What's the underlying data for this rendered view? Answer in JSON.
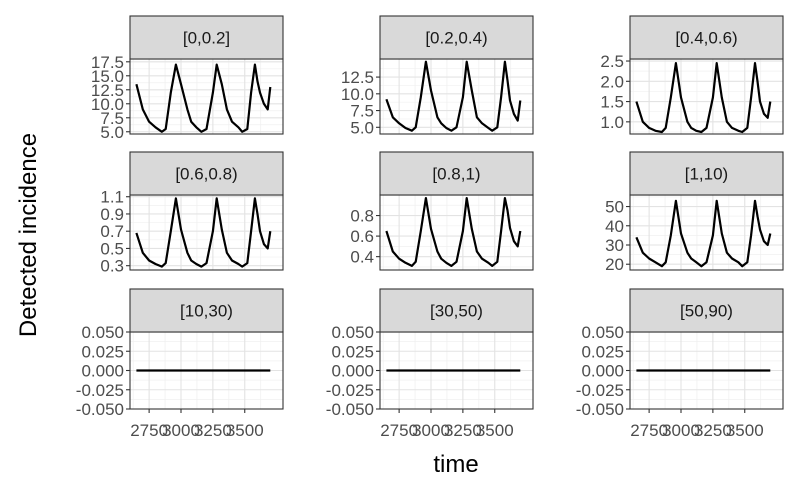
{
  "chart_data": {
    "type": "line",
    "layout": "facet-grid 3x3",
    "xlabel": "time",
    "ylabel": "Detected incidence",
    "x_ticks": [
      2750,
      3000,
      3250,
      3500
    ],
    "xlim": [
      2600,
      3800
    ],
    "facets": [
      {
        "label": "[0,0.2]",
        "ylim": [
          4.6,
          18.0
        ],
        "y_ticks": [
          "5.0",
          "7.5",
          "10.0",
          "12.5",
          "15.0",
          "17.5"
        ],
        "x": [
          2650,
          2700,
          2750,
          2800,
          2850,
          2880,
          2920,
          2960,
          3000,
          3050,
          3080,
          3120,
          3160,
          3200,
          3250,
          3280,
          3320,
          3360,
          3400,
          3450,
          3480,
          3520,
          3550,
          3580,
          3600,
          3620,
          3650,
          3680,
          3700
        ],
        "y": [
          13.5,
          9.0,
          6.8,
          5.8,
          5.0,
          5.5,
          12.0,
          17.0,
          13.5,
          9.0,
          6.8,
          5.8,
          5.0,
          5.5,
          12.0,
          17.0,
          13.5,
          9.0,
          6.8,
          5.8,
          5.0,
          5.5,
          12.0,
          17.0,
          14.0,
          12.0,
          10.0,
          9.0,
          13.0
        ]
      },
      {
        "label": "[0.2,0.4)",
        "ylim": [
          4.0,
          15.2
        ],
        "y_ticks": [
          "5.0",
          "7.5",
          "10.0",
          "12.5"
        ],
        "x": [
          2650,
          2700,
          2750,
          2800,
          2850,
          2880,
          2920,
          2960,
          3000,
          3050,
          3080,
          3120,
          3160,
          3200,
          3250,
          3280,
          3320,
          3360,
          3400,
          3450,
          3480,
          3520,
          3550,
          3580,
          3600,
          3620,
          3650,
          3680,
          3700
        ],
        "y": [
          9.2,
          6.5,
          5.6,
          4.9,
          4.5,
          5.0,
          9.5,
          14.8,
          10.5,
          6.5,
          5.6,
          4.9,
          4.5,
          5.0,
          9.5,
          14.8,
          10.5,
          6.5,
          5.6,
          4.9,
          4.5,
          5.0,
          9.5,
          14.8,
          12.0,
          9.0,
          7.0,
          6.0,
          9.0
        ]
      },
      {
        "label": "[0.4,0.6)",
        "ylim": [
          0.7,
          2.55
        ],
        "y_ticks": [
          "1.0",
          "1.5",
          "2.0",
          "2.5"
        ],
        "x": [
          2650,
          2700,
          2750,
          2800,
          2850,
          2880,
          2920,
          2960,
          3000,
          3050,
          3080,
          3120,
          3160,
          3200,
          3250,
          3280,
          3320,
          3360,
          3400,
          3450,
          3480,
          3520,
          3550,
          3580,
          3600,
          3620,
          3650,
          3680,
          3700
        ],
        "y": [
          1.5,
          1.0,
          0.85,
          0.78,
          0.75,
          0.85,
          1.6,
          2.45,
          1.6,
          1.0,
          0.85,
          0.78,
          0.75,
          0.85,
          1.6,
          2.45,
          1.6,
          1.0,
          0.85,
          0.78,
          0.75,
          0.85,
          1.6,
          2.45,
          2.0,
          1.5,
          1.2,
          1.1,
          1.5
        ]
      },
      {
        "label": "[0.6,0.8)",
        "ylim": [
          0.25,
          1.12
        ],
        "y_ticks": [
          "0.3",
          "0.5",
          "0.7",
          "0.9",
          "1.1"
        ],
        "x": [
          2650,
          2700,
          2750,
          2800,
          2850,
          2880,
          2920,
          2960,
          3000,
          3050,
          3080,
          3120,
          3160,
          3200,
          3250,
          3280,
          3320,
          3360,
          3400,
          3450,
          3480,
          3520,
          3550,
          3580,
          3600,
          3620,
          3650,
          3680,
          3700
        ],
        "y": [
          0.68,
          0.45,
          0.36,
          0.32,
          0.29,
          0.33,
          0.7,
          1.08,
          0.72,
          0.45,
          0.36,
          0.32,
          0.29,
          0.33,
          0.7,
          1.08,
          0.72,
          0.45,
          0.36,
          0.32,
          0.29,
          0.33,
          0.7,
          1.08,
          0.9,
          0.7,
          0.55,
          0.5,
          0.7
        ]
      },
      {
        "label": "[0.8,1)",
        "ylim": [
          0.27,
          1.0
        ],
        "y_ticks": [
          "0.4",
          "0.6",
          "0.8"
        ],
        "x": [
          2650,
          2700,
          2750,
          2800,
          2850,
          2880,
          2920,
          2960,
          3000,
          3050,
          3080,
          3120,
          3160,
          3200,
          3250,
          3280,
          3320,
          3360,
          3400,
          3450,
          3480,
          3520,
          3550,
          3580,
          3600,
          3620,
          3650,
          3680,
          3700
        ],
        "y": [
          0.65,
          0.45,
          0.38,
          0.34,
          0.31,
          0.35,
          0.65,
          0.97,
          0.67,
          0.45,
          0.38,
          0.34,
          0.31,
          0.35,
          0.65,
          0.97,
          0.67,
          0.45,
          0.38,
          0.34,
          0.31,
          0.35,
          0.65,
          0.97,
          0.85,
          0.68,
          0.55,
          0.5,
          0.65
        ]
      },
      {
        "label": "[1,10)",
        "ylim": [
          17,
          56
        ],
        "y_ticks": [
          "20",
          "30",
          "40",
          "50"
        ],
        "x": [
          2650,
          2700,
          2750,
          2800,
          2850,
          2880,
          2920,
          2960,
          3000,
          3050,
          3080,
          3120,
          3160,
          3200,
          3250,
          3280,
          3320,
          3360,
          3400,
          3450,
          3480,
          3520,
          3550,
          3580,
          3600,
          3620,
          3650,
          3680,
          3700
        ],
        "y": [
          34,
          26,
          23,
          21,
          19,
          21,
          35,
          53,
          36,
          26,
          23,
          21,
          19,
          21,
          35,
          53,
          36,
          26,
          23,
          21,
          19,
          21,
          35,
          53,
          45,
          38,
          32,
          30,
          36
        ]
      },
      {
        "label": "[10,30)",
        "ylim": [
          -0.05,
          0.05
        ],
        "y_ticks": [
          "-0.050",
          "-0.025",
          "0.000",
          "0.025",
          "0.050"
        ],
        "x": [
          2650,
          3700
        ],
        "y": [
          0,
          0
        ]
      },
      {
        "label": "[30,50)",
        "ylim": [
          -0.05,
          0.05
        ],
        "y_ticks": [
          "-0.050",
          "-0.025",
          "0.000",
          "0.025",
          "0.050"
        ],
        "x": [
          2650,
          3700
        ],
        "y": [
          0,
          0
        ]
      },
      {
        "label": "[50,90)",
        "ylim": [
          -0.05,
          0.05
        ],
        "y_ticks": [
          "-0.050",
          "-0.025",
          "0.000",
          "0.025",
          "0.050"
        ],
        "x": [
          2650,
          3700
        ],
        "y": [
          0,
          0
        ]
      }
    ]
  }
}
